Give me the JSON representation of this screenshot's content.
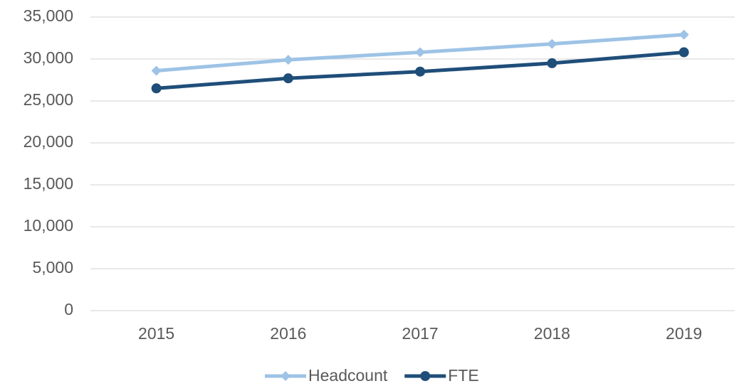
{
  "chart_data": {
    "type": "line",
    "categories": [
      "2015",
      "2016",
      "2017",
      "2018",
      "2019"
    ],
    "series": [
      {
        "name": "Headcount",
        "color": "#9dc3e6",
        "marker": "diamond",
        "values": [
          28600,
          29900,
          30800,
          31800,
          32900
        ]
      },
      {
        "name": "FTE",
        "color": "#1f4e79",
        "marker": "circle",
        "values": [
          26500,
          27700,
          28500,
          29500,
          30800
        ]
      }
    ],
    "ylim": [
      0,
      35000
    ],
    "yticks": [
      0,
      {
        "value": 5000,
        "label": "5,000"
      },
      {
        "value": 10000,
        "label": "10,000"
      },
      {
        "value": 15000,
        "label": "15,000"
      },
      {
        "value": 20000,
        "label": "20,000"
      },
      {
        "value": 25000,
        "label": "25,000"
      },
      {
        "value": 30000,
        "label": "30,000"
      },
      {
        "value": 35000,
        "label": "35,000"
      }
    ],
    "grid": true,
    "legend": "bottom"
  }
}
